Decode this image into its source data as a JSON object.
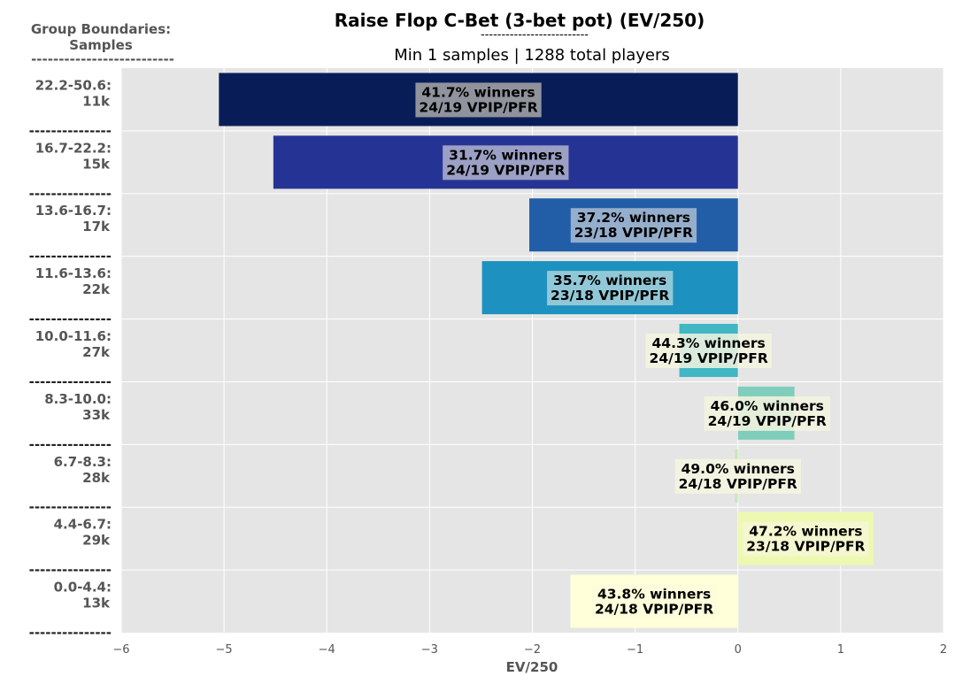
{
  "header": {
    "title": "Raise Flop C-Bet (3-bet pot) (EV/250)",
    "title_rule": "--------------------------",
    "subtitle": "Min 1 samples | 1288 total players"
  },
  "side": {
    "heading_line1": "Group Boundaries:",
    "heading_line2": "Samples",
    "heading_rule": "--------------------------",
    "separator": "---------------"
  },
  "chart_data": {
    "type": "bar",
    "orientation": "horizontal",
    "title": "Raise Flop C-Bet (3-bet pot) (EV/250)",
    "subtitle": "Min 1 samples | 1288 total players",
    "xlabel": "EV/250",
    "ylabel": "Group Boundaries: Samples",
    "xlim": [
      -6,
      2
    ],
    "xticks": [
      -6,
      -5,
      -4,
      -3,
      -2,
      -1,
      0,
      1,
      2
    ],
    "xtick_labels": [
      "−6",
      "−5",
      "−4",
      "−3",
      "−2",
      "−1",
      "0",
      "1",
      "2"
    ],
    "grid": true,
    "bars": [
      {
        "group": "22.2-50.6:",
        "samples": "11k",
        "value": -5.05,
        "winners": "41.7% winners",
        "vpip_pfr": "24/19 VPIP/PFR",
        "color": "#081d58",
        "label_bg": "#a8a8a8"
      },
      {
        "group": "16.7-22.2:",
        "samples": "15k",
        "value": -4.52,
        "winners": "31.7% winners",
        "vpip_pfr": "24/19 VPIP/PFR",
        "color": "#253494",
        "label_bg": "#b0b4cd"
      },
      {
        "group": "13.6-16.7:",
        "samples": "17k",
        "value": -2.03,
        "winners": "37.2% winners",
        "vpip_pfr": "23/18 VPIP/PFR",
        "color": "#225ea8",
        "label_bg": "#a9bcd2"
      },
      {
        "group": "11.6-13.6:",
        "samples": "22k",
        "value": -2.49,
        "winners": "35.7% winners",
        "vpip_pfr": "23/18 VPIP/PFR",
        "color": "#1d91c0",
        "label_bg": "#a6d1da"
      },
      {
        "group": "10.0-11.6:",
        "samples": "27k",
        "value": -0.57,
        "winners": "44.3% winners",
        "vpip_pfr": "24/19 VPIP/PFR",
        "color": "#41b6c4",
        "label_bg": "#f4f5e1"
      },
      {
        "group": "8.3-10.0:",
        "samples": "33k",
        "value": 0.55,
        "winners": "46.0% winners",
        "vpip_pfr": "24/19 VPIP/PFR",
        "color": "#7fcdbb",
        "label_bg": "#f4f5e1"
      },
      {
        "group": "6.7-8.3:",
        "samples": "28k",
        "value": -0.03,
        "winners": "49.0% winners",
        "vpip_pfr": "24/18 VPIP/PFR",
        "color": "#c7e9b4",
        "label_bg": "#f6f6e2"
      },
      {
        "group": "4.4-6.7:",
        "samples": "29k",
        "value": 1.32,
        "winners": "47.2% winners",
        "vpip_pfr": "23/18 VPIP/PFR",
        "color": "#edf8b1",
        "label_bg": "#f6f7d6"
      },
      {
        "group": "0.0-4.4:",
        "samples": "13k",
        "value": -1.63,
        "winners": "43.8% winners",
        "vpip_pfr": "24/18 VPIP/PFR",
        "color": "#ffffd9",
        "label_bg": "#fdfddb"
      }
    ],
    "colors": {
      "plot_bg": "#e5e5e5",
      "grid": "#ffffff",
      "axis_text": "#555555"
    }
  }
}
